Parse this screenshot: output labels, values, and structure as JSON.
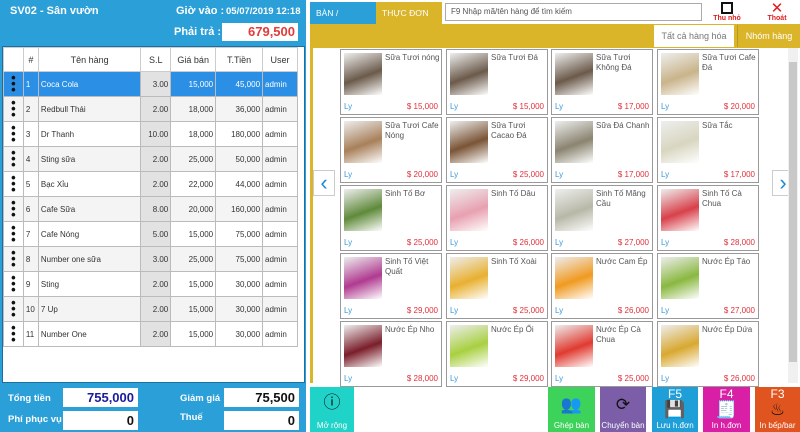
{
  "order": {
    "title": "SV02 - Sân vườn",
    "checkin_label": "Giờ vào :",
    "checkin_time": "05/07/2019 12:18",
    "pay_label": "Phải trả :",
    "pay_value": "679,500"
  },
  "table": {
    "headers": [
      "",
      "#",
      "Tên hàng",
      "S.L",
      "Giá bán",
      "T.Tiền",
      "User"
    ],
    "rows": [
      [
        "1",
        "Coca Cola",
        "3.00",
        "15,000",
        "45,000",
        "admin"
      ],
      [
        "2",
        "Redbull Thái",
        "2.00",
        "18,000",
        "36,000",
        "admin"
      ],
      [
        "3",
        "Dr Thanh",
        "10.00",
        "18,000",
        "180,000",
        "admin"
      ],
      [
        "4",
        "Sting sữa",
        "2.00",
        "25,000",
        "50,000",
        "admin"
      ],
      [
        "5",
        "Bạc Xỉu",
        "2.00",
        "22,000",
        "44,000",
        "admin"
      ],
      [
        "6",
        "Cafe Sữa",
        "8.00",
        "20,000",
        "160,000",
        "admin"
      ],
      [
        "7",
        "Cafe Nóng",
        "5.00",
        "15,000",
        "75,000",
        "admin"
      ],
      [
        "8",
        "Number one sữa",
        "3.00",
        "25,000",
        "75,000",
        "admin"
      ],
      [
        "9",
        "Sting",
        "2.00",
        "15,000",
        "30,000",
        "admin"
      ],
      [
        "10",
        "7 Up",
        "2.00",
        "15,000",
        "30,000",
        "admin"
      ],
      [
        "11",
        "Number One",
        "2.00",
        "15,000",
        "30,000",
        "admin"
      ]
    ]
  },
  "totals": {
    "total_label": "Tổng tiền",
    "total": "755,000",
    "discount_label": "Giảm giá",
    "discount": "75,500",
    "service_label": "Phí phục vụ",
    "service": "0",
    "tax_label": "Thuế",
    "tax": "0"
  },
  "tabs": {
    "tables": "BÀN / PHÒNG",
    "menu": "THỰC ĐƠN"
  },
  "search": {
    "placeholder": "F9 Nhập mã/tên hàng để tìm kiếm"
  },
  "top": {
    "minimize": "Thu nhỏ",
    "exit": "Thoát"
  },
  "filters": {
    "all": "Tất cả hàng hóa",
    "group": "Nhóm hàng"
  },
  "products": [
    {
      "name": "Sữa Tươi nóng",
      "unit": "Ly",
      "price": "$ 15,000",
      "color": "#6b5a4a"
    },
    {
      "name": "Sữa Tươi Đá",
      "unit": "Ly",
      "price": "$ 15,000",
      "color": "#6b5a4a"
    },
    {
      "name": "Sữa Tươi Không Đá",
      "unit": "Ly",
      "price": "$ 17,000",
      "color": "#6b5a4a"
    },
    {
      "name": "Sữa Tươi Cafe Đá",
      "unit": "Ly",
      "price": "$ 20,000",
      "color": "#c9b48a"
    },
    {
      "name": "Sữa Tươi Cafe Nóng",
      "unit": "Ly",
      "price": "$ 20,000",
      "color": "#a8805a"
    },
    {
      "name": "Sữa Tươi Cacao Đá",
      "unit": "Ly",
      "price": "$ 25,000",
      "color": "#7a5436"
    },
    {
      "name": "Sữa Đá Chanh",
      "unit": "Ly",
      "price": "$ 17,000",
      "color": "#8a8470"
    },
    {
      "name": "Sữa Tắc",
      "unit": "Ly",
      "price": "$ 17,000",
      "color": "#d8d6c0"
    },
    {
      "name": "Sinh Tố Bơ",
      "unit": "Ly",
      "price": "$ 25,000",
      "color": "#5f8a3a"
    },
    {
      "name": "Sinh Tố Dâu",
      "unit": "Ly",
      "price": "$ 26,000",
      "color": "#e8a0b0"
    },
    {
      "name": "Sinh Tố Mãng Cầu",
      "unit": "Ly",
      "price": "$ 27,000",
      "color": "#b8b8a8"
    },
    {
      "name": "Sinh Tố Cà Chua",
      "unit": "Ly",
      "price": "$ 28,000",
      "color": "#d8404a"
    },
    {
      "name": "Sinh Tố Việt Quất",
      "unit": "Ly",
      "price": "$ 29,000",
      "color": "#b03a90"
    },
    {
      "name": "Sinh Tố Xoài",
      "unit": "Ly",
      "price": "$ 25,000",
      "color": "#e8b030"
    },
    {
      "name": "Nước Cam Ép",
      "unit": "Ly",
      "price": "$ 26,000",
      "color": "#f09a20"
    },
    {
      "name": "Nước Ép Táo",
      "unit": "Ly",
      "price": "$ 27,000",
      "color": "#8ab840"
    },
    {
      "name": "Nước Ép Nho",
      "unit": "Ly",
      "price": "$ 28,000",
      "color": "#7a1e2a"
    },
    {
      "name": "Nước Ép Ổi",
      "unit": "Ly",
      "price": "$ 29,000",
      "color": "#a8d040"
    },
    {
      "name": "Nước Ép Cà Chua",
      "unit": "Ly",
      "price": "$ 25,000",
      "color": "#e03a30"
    },
    {
      "name": "Nước Ép Dứa",
      "unit": "Ly",
      "price": "$ 26,000",
      "color": "#d8a830"
    }
  ],
  "actions": {
    "more": "Mở rộng",
    "merge": "Ghép bàn",
    "move": "Chuyển bàn",
    "save": "Lưu h.đơn",
    "save_key": "F5",
    "print": "In h.đơn",
    "print_key": "F4",
    "kitchen": "In bếp/bar",
    "kitchen_key": "F3"
  },
  "colors": {
    "left_panel": "#2a9fd8",
    "gold": "#dab52a",
    "selected_row": "#2b8fe6",
    "price": "#e0303a",
    "more": "#1fd3c8",
    "merge": "#3dd25a",
    "move": "#7b5ea7",
    "save": "#1e9fd8",
    "print": "#d81fa5",
    "kitchen": "#e0541f"
  }
}
